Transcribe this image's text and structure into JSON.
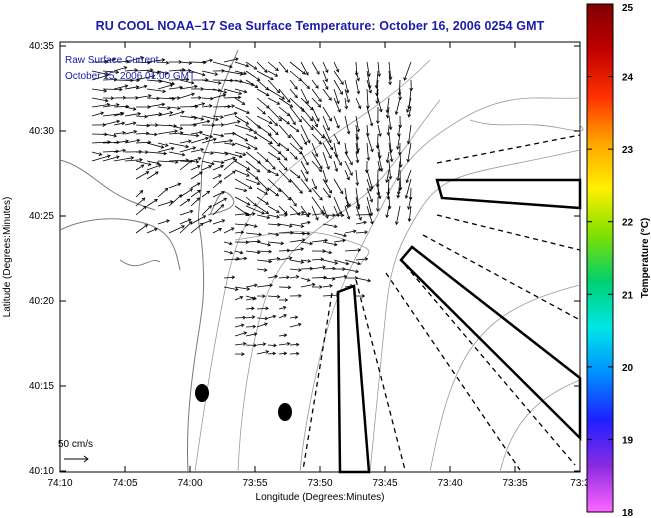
{
  "title": "RU COOL  NOAA–17  Sea Surface Temperature:  October 16, 2006 0254 GMT",
  "legend": {
    "current_label": "Raw Surface Current",
    "current_time": "October 15, 2006 01:00 GMT",
    "scale_label": "50 cm/s"
  },
  "axes": {
    "xlabel": "Longitude (Degrees:Minutes)",
    "ylabel": "Latitude (Degrees:Minutes)",
    "x_ticks": [
      "74:10",
      "74:05",
      "74:00",
      "73:55",
      "73:50",
      "73:45",
      "73:40",
      "73:35",
      "73:3"
    ],
    "y_ticks": [
      "40:35",
      "40:30",
      "40:25",
      "40:20",
      "40:15",
      "40:10"
    ]
  },
  "colorbar": {
    "label": "Temperature (°C)",
    "ticks": [
      "25",
      "24",
      "23",
      "22",
      "21",
      "20",
      "19",
      "18"
    ],
    "range": [
      18,
      25
    ],
    "colors": [
      "#ff66ff",
      "#8a2be2",
      "#1e20ff",
      "#0090ff",
      "#00e6e6",
      "#00d070",
      "#7fe000",
      "#fff000",
      "#ffa500",
      "#ff3000",
      "#c00000",
      "#800000"
    ]
  },
  "colors": {
    "title": "#1b1baa",
    "vectors": "#000000",
    "contours": "#9a9a9a"
  }
}
